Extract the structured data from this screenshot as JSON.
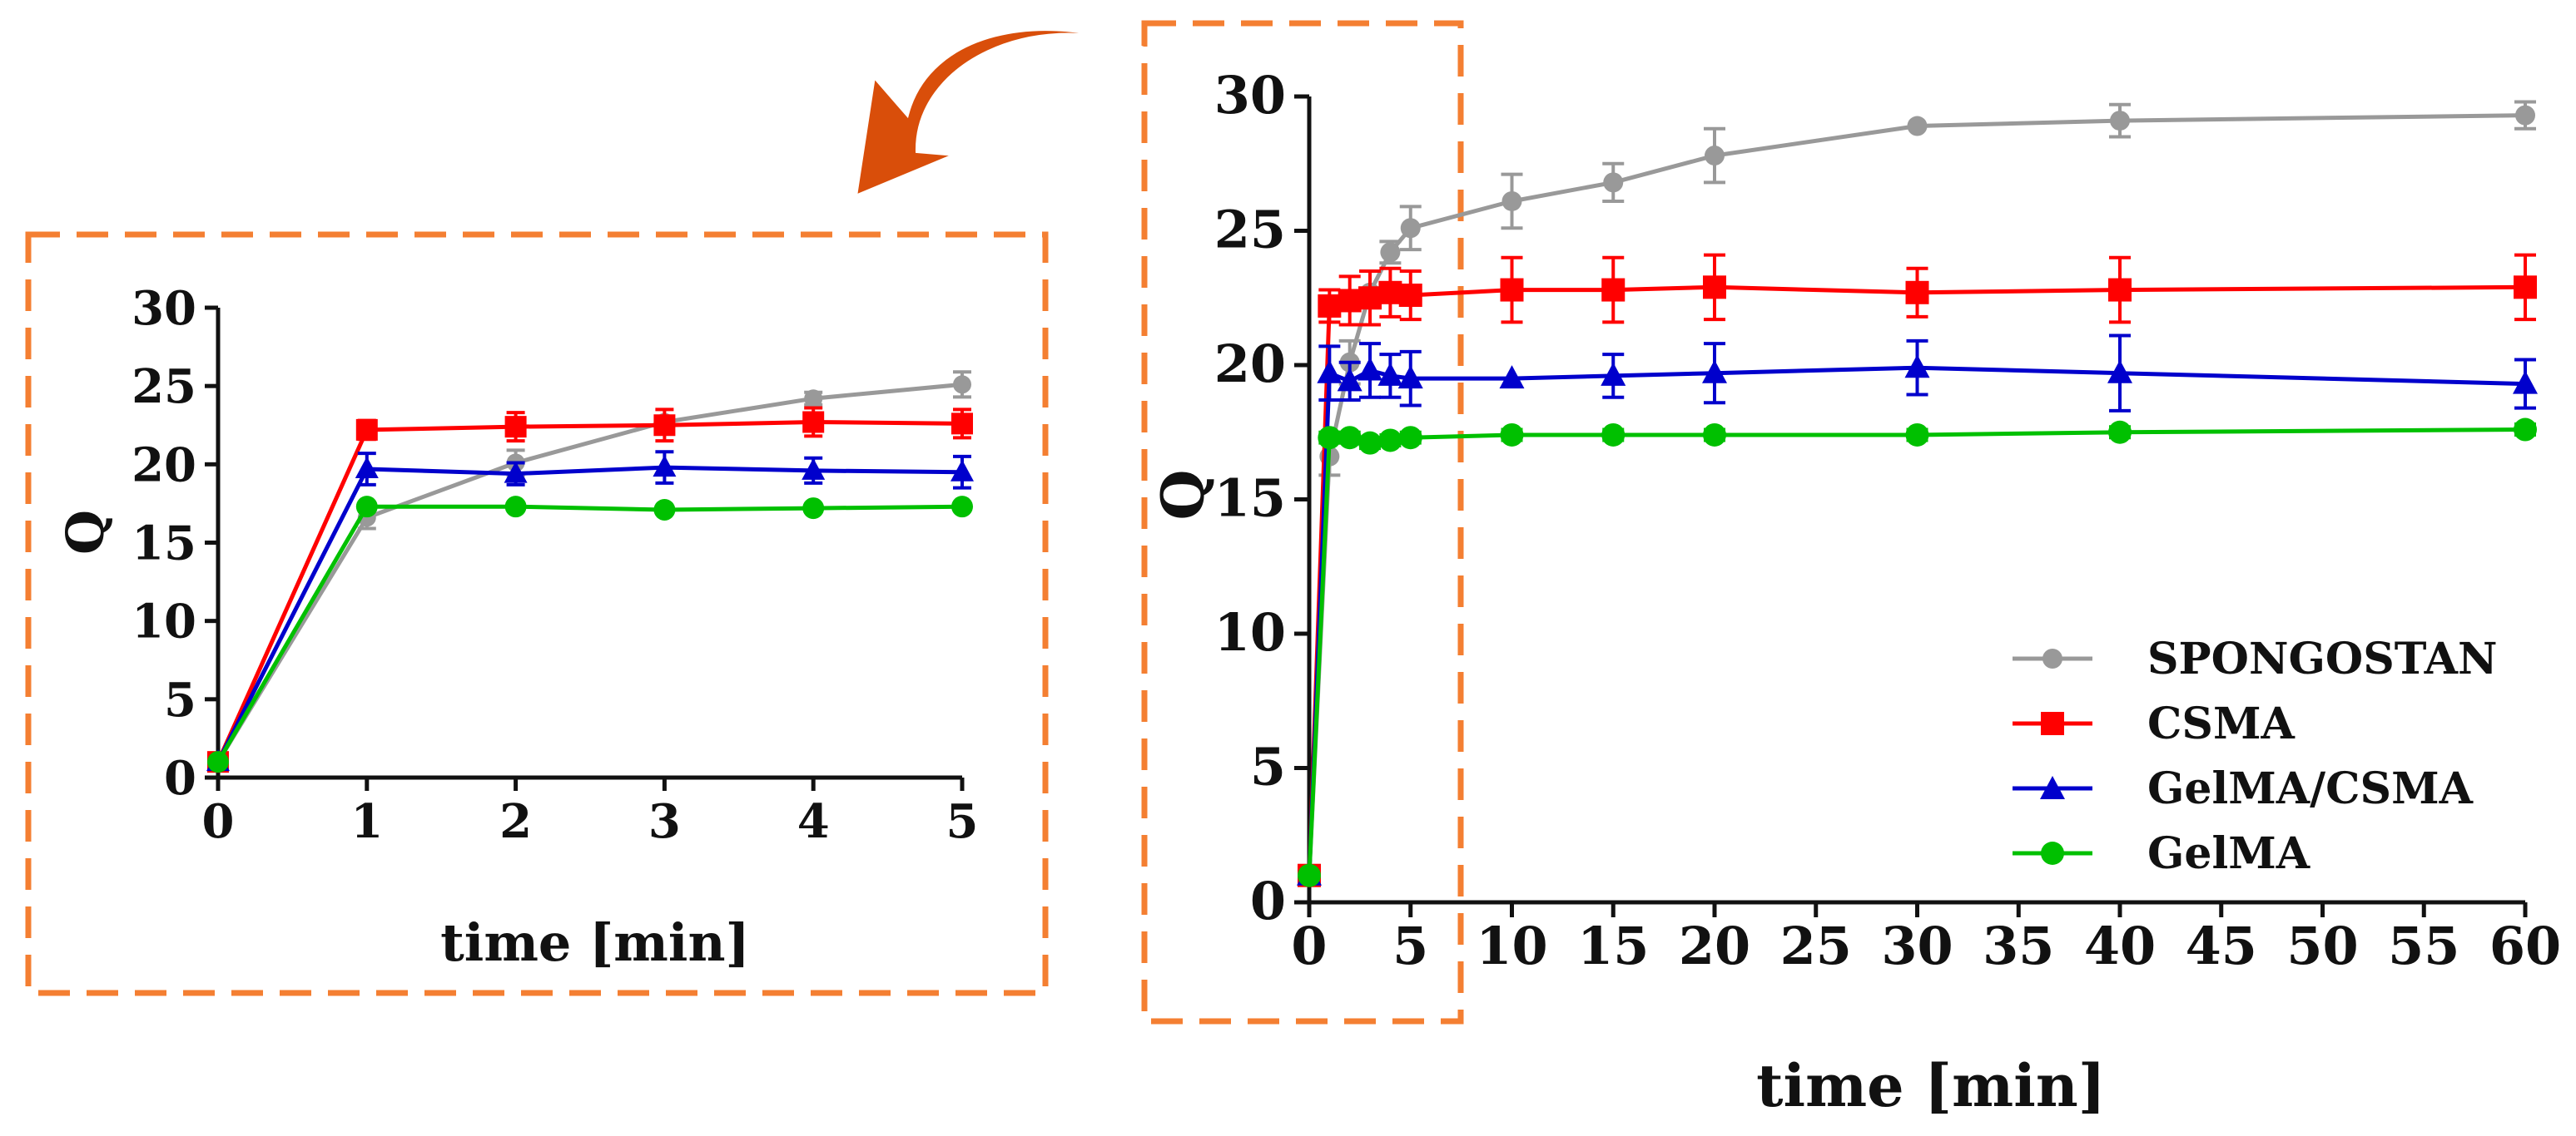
{
  "colors": {
    "SPONGOSTAN": "#999999",
    "CSMA": "#ff0000",
    "GelMA/CSMA": "#0000cc",
    "GelMA": "#00c000",
    "dashed_box": "#f47f32",
    "arrow": "#d94e0a"
  },
  "chart_data": [
    {
      "type": "line",
      "panel": "inset (zoomed 0-5 min)",
      "xlabel": "time [min]",
      "ylabel": "Q",
      "xlim": [
        0,
        5
      ],
      "ylim": [
        0,
        30
      ],
      "xticks": [
        0,
        1,
        2,
        3,
        4,
        5
      ],
      "yticks": [
        0,
        5,
        10,
        15,
        20,
        25,
        30
      ],
      "legend": "none",
      "grid": false,
      "series": [
        {
          "name": "SPONGOSTAN",
          "marker": "circle",
          "x": [
            0,
            1,
            2,
            3,
            4,
            5
          ],
          "y": [
            1,
            16.6,
            20.1,
            22.7,
            24.2,
            25.1
          ],
          "err": [
            0,
            0.7,
            0.8,
            0,
            0.4,
            0.8
          ]
        },
        {
          "name": "CSMA",
          "marker": "square",
          "x": [
            0,
            1,
            2,
            3,
            4,
            5
          ],
          "y": [
            1,
            22.2,
            22.4,
            22.5,
            22.7,
            22.6
          ],
          "err": [
            0,
            0.6,
            0.9,
            1.0,
            0.9,
            0.9
          ]
        },
        {
          "name": "GelMA/CSMA",
          "marker": "triangle",
          "x": [
            0,
            1,
            2,
            3,
            4,
            5
          ],
          "y": [
            1,
            19.7,
            19.4,
            19.8,
            19.6,
            19.5
          ],
          "err": [
            0,
            1.0,
            0.7,
            1.0,
            0.8,
            1.0
          ]
        },
        {
          "name": "GelMA",
          "marker": "circle",
          "x": [
            0,
            1,
            2,
            3,
            4,
            5
          ],
          "y": [
            1,
            17.3,
            17.3,
            17.1,
            17.2,
            17.3
          ],
          "err": [
            0,
            0.2,
            0.2,
            0.2,
            0.2,
            0.2
          ]
        }
      ]
    },
    {
      "type": "line",
      "panel": "main (0-60 min)",
      "xlabel": "time [min]",
      "ylabel": "Q",
      "xlim": [
        0,
        60
      ],
      "ylim": [
        0,
        30
      ],
      "xticks": [
        0,
        5,
        10,
        15,
        20,
        25,
        30,
        35,
        40,
        45,
        50,
        55,
        60
      ],
      "yticks": [
        0,
        5,
        10,
        15,
        20,
        25,
        30
      ],
      "legend": "bottom-right",
      "grid": false,
      "series": [
        {
          "name": "SPONGOSTAN",
          "marker": "circle",
          "x": [
            0,
            1,
            2,
            3,
            4,
            5,
            10,
            15,
            20,
            30,
            40,
            60
          ],
          "y": [
            1,
            16.6,
            20.1,
            22.7,
            24.2,
            25.1,
            26.1,
            26.8,
            27.8,
            28.9,
            29.1,
            29.3
          ],
          "err": [
            0,
            0.7,
            0.8,
            0,
            0.4,
            0.8,
            1.0,
            0.7,
            1.0,
            0,
            0.6,
            0.5
          ]
        },
        {
          "name": "CSMA",
          "marker": "square",
          "x": [
            0,
            1,
            2,
            3,
            4,
            5,
            10,
            15,
            20,
            30,
            40,
            60
          ],
          "y": [
            1,
            22.2,
            22.4,
            22.5,
            22.7,
            22.6,
            22.8,
            22.8,
            22.9,
            22.7,
            22.8,
            22.9
          ],
          "err": [
            0,
            0.6,
            0.9,
            1.0,
            0.9,
            0.9,
            1.2,
            1.2,
            1.2,
            0.9,
            1.2,
            1.2
          ]
        },
        {
          "name": "GelMA/CSMA",
          "marker": "triangle",
          "x": [
            0,
            1,
            2,
            3,
            4,
            5,
            10,
            15,
            20,
            30,
            40,
            60
          ],
          "y": [
            1,
            19.7,
            19.4,
            19.8,
            19.6,
            19.5,
            19.5,
            19.6,
            19.7,
            19.9,
            19.7,
            19.3
          ],
          "err": [
            0,
            1.0,
            0.7,
            1.0,
            0.8,
            1.0,
            0,
            0.8,
            1.1,
            1.0,
            1.4,
            0.9
          ]
        },
        {
          "name": "GelMA",
          "marker": "circle",
          "x": [
            0,
            1,
            2,
            3,
            4,
            5,
            10,
            15,
            20,
            30,
            40,
            60
          ],
          "y": [
            1,
            17.3,
            17.3,
            17.1,
            17.2,
            17.3,
            17.4,
            17.4,
            17.4,
            17.4,
            17.5,
            17.6
          ],
          "err": [
            0,
            0.2,
            0.2,
            0.2,
            0.2,
            0.2,
            0.2,
            0.2,
            0.2,
            0.2,
            0.2,
            0.2
          ]
        }
      ]
    }
  ]
}
